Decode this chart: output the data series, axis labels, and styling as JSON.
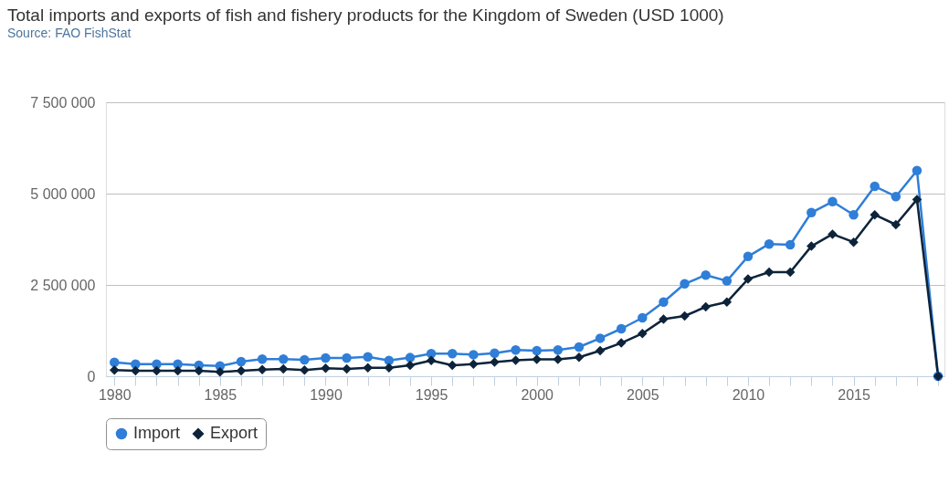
{
  "chart_data": {
    "type": "line",
    "title": "Total imports and exports of fish and fishery products for the Kingdom of Sweden (USD 1000)",
    "annotations": [
      "Source: FAO FishStat"
    ],
    "x": [
      1980,
      1981,
      1982,
      1983,
      1984,
      1985,
      1986,
      1987,
      1988,
      1989,
      1990,
      1991,
      1992,
      1993,
      1994,
      1995,
      1996,
      1997,
      1998,
      1999,
      2000,
      2001,
      2002,
      2003,
      2004,
      2005,
      2006,
      2007,
      2008,
      2009,
      2010,
      2011,
      2012,
      2013,
      2014,
      2015,
      2016,
      2017,
      2018,
      2019
    ],
    "series": [
      {
        "name": "Import",
        "color": "#2f7ed8",
        "marker": "circle",
        "values": [
          380000,
          330000,
          330000,
          330000,
          300000,
          280000,
          400000,
          470000,
          470000,
          450000,
          500000,
          500000,
          530000,
          430000,
          510000,
          620000,
          620000,
          590000,
          630000,
          720000,
          700000,
          720000,
          800000,
          1040000,
          1300000,
          1600000,
          2030000,
          2530000,
          2770000,
          2610000,
          3280000,
          3620000,
          3600000,
          4480000,
          4780000,
          4420000,
          5200000,
          4920000,
          5630000,
          0
        ]
      },
      {
        "name": "Export",
        "color": "#0d233a",
        "marker": "diamond",
        "values": [
          170000,
          150000,
          150000,
          150000,
          150000,
          120000,
          150000,
          180000,
          200000,
          170000,
          220000,
          200000,
          230000,
          230000,
          300000,
          430000,
          300000,
          330000,
          390000,
          440000,
          460000,
          460000,
          520000,
          700000,
          910000,
          1170000,
          1560000,
          1650000,
          1900000,
          2030000,
          2660000,
          2850000,
          2850000,
          3560000,
          3890000,
          3670000,
          4420000,
          4150000,
          4840000,
          0
        ]
      }
    ],
    "xlim": [
      1979.6,
      2019.3
    ],
    "xticks": [
      1980,
      {
        "value": 1981,
        "label": null
      },
      {
        "value": 1982,
        "label": null
      },
      {
        "value": 1983,
        "label": null
      },
      {
        "value": 1984,
        "label": null
      },
      1985,
      {
        "value": 1986,
        "label": null
      },
      {
        "value": 1987,
        "label": null
      },
      {
        "value": 1988,
        "label": null
      },
      {
        "value": 1989,
        "label": null
      },
      1990,
      {
        "value": 1991,
        "label": null
      },
      {
        "value": 1992,
        "label": null
      },
      {
        "value": 1993,
        "label": null
      },
      {
        "value": 1994,
        "label": null
      },
      1995,
      {
        "value": 1996,
        "label": null
      },
      {
        "value": 1997,
        "label": null
      },
      {
        "value": 1998,
        "label": null
      },
      {
        "value": 1999,
        "label": null
      },
      2000,
      {
        "value": 2001,
        "label": null
      },
      {
        "value": 2002,
        "label": null
      },
      {
        "value": 2003,
        "label": null
      },
      {
        "value": 2004,
        "label": null
      },
      2005,
      {
        "value": 2006,
        "label": null
      },
      {
        "value": 2007,
        "label": null
      },
      {
        "value": 2008,
        "label": null
      },
      {
        "value": 2009,
        "label": null
      },
      2010,
      {
        "value": 2011,
        "label": null
      },
      {
        "value": 2012,
        "label": null
      },
      {
        "value": 2013,
        "label": null
      },
      {
        "value": 2014,
        "label": null
      },
      2015,
      {
        "value": 2016,
        "label": null
      },
      {
        "value": 2017,
        "label": null
      },
      {
        "value": 2018,
        "label": null
      },
      {
        "value": 2019,
        "label": null
      }
    ],
    "ylim": [
      0,
      7500000
    ],
    "yticks": [
      0,
      {
        "value": 2500000,
        "label": "2 500 000"
      },
      {
        "value": 5000000,
        "label": "5 000 000"
      },
      {
        "value": 7500000,
        "label": "7 500 000"
      }
    ],
    "grid": "y",
    "legend": "bottom",
    "line_style": "solid"
  }
}
